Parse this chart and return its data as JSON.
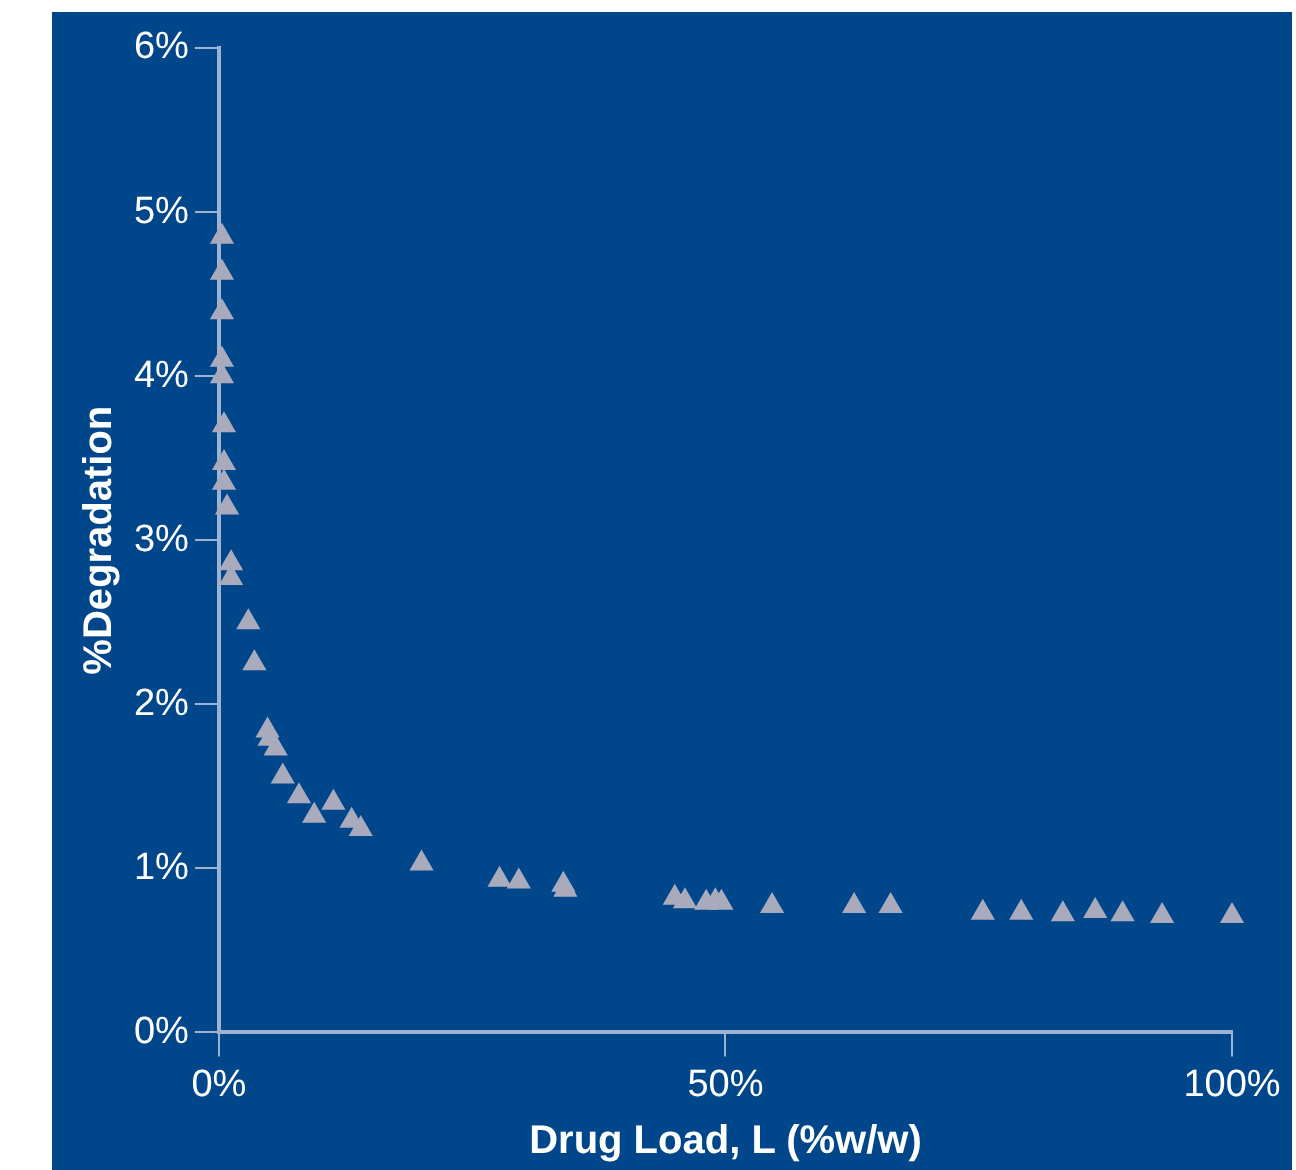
{
  "chart_data": {
    "type": "scatter",
    "xlabel": "Drug Load, L (%w/w)",
    "ylabel": "%Degradation",
    "x": [
      0.3,
      0.3,
      0.3,
      0.3,
      0.3,
      0.5,
      0.5,
      0.5,
      0.8,
      1.2,
      1.2,
      2.9,
      3.5,
      4.8,
      5.0,
      5.6,
      6.3,
      7.9,
      9.4,
      11.3,
      13.1,
      14.0,
      20,
      27.7,
      29.6,
      34,
      34.2,
      45,
      46,
      48.1,
      49,
      49.6,
      54.6,
      62.7,
      66.3,
      75.4,
      79.2,
      83.3,
      86.5,
      89.2,
      93.1,
      100
    ],
    "series": [
      {
        "color": "#a9abbd",
        "values": [
          4.85,
          4.63,
          4.39,
          4.1,
          4.0,
          3.7,
          3.47,
          3.35,
          3.2,
          2.86,
          2.77,
          2.5,
          2.25,
          1.84,
          1.79,
          1.73,
          1.56,
          1.44,
          1.32,
          1.4,
          1.29,
          1.24,
          1.03,
          0.93,
          0.92,
          0.9,
          0.87,
          0.82,
          0.8,
          0.79,
          0.8,
          0.79,
          0.77,
          0.77,
          0.77,
          0.73,
          0.73,
          0.72,
          0.74,
          0.72,
          0.71,
          0.71
        ]
      }
    ],
    "marker": "triangle",
    "grid": false,
    "legend": false,
    "xlim": [
      0,
      100
    ],
    "xticks": [
      {
        "value": 0,
        "label": "0%"
      },
      {
        "value": 50,
        "label": "50%"
      },
      {
        "value": 100,
        "label": "100%"
      }
    ],
    "ylim": [
      0,
      6
    ],
    "yticks": [
      {
        "value": 0,
        "label": "0%"
      },
      {
        "value": 1,
        "label": "1%"
      },
      {
        "value": 2,
        "label": "2%"
      },
      {
        "value": 3,
        "label": "3%"
      },
      {
        "value": 4,
        "label": "4%"
      },
      {
        "value": 5,
        "label": "5%"
      },
      {
        "value": 6,
        "label": "6%"
      }
    ]
  }
}
